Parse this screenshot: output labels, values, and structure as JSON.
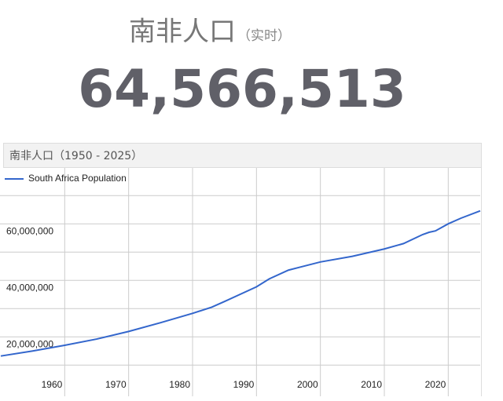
{
  "header": {
    "title": "南非人口",
    "subtitle": "（实时）",
    "counter": "64,566,513"
  },
  "chart_data": {
    "type": "line",
    "title": "南非人口（1950 - 2025）",
    "x": [
      1950,
      1955,
      1960,
      1965,
      1970,
      1975,
      1980,
      1983,
      1985,
      1990,
      1992,
      1995,
      2000,
      2005,
      2010,
      2013,
      2016,
      2017,
      2018,
      2020,
      2022,
      2025
    ],
    "series": [
      {
        "name": "South Africa Population",
        "color": "#3366cc",
        "values": [
          13200000,
          15000000,
          17000000,
          19200000,
          21900000,
          25000000,
          28300000,
          30500000,
          32500000,
          37700000,
          40500000,
          43600000,
          46500000,
          48500000,
          51100000,
          53000000,
          56200000,
          57000000,
          57500000,
          60000000,
          62000000,
          64600000
        ]
      }
    ],
    "xlim": [
      1950,
      2025
    ],
    "xticks": [
      1960,
      1970,
      1980,
      1990,
      2000,
      2010,
      2020
    ],
    "ylim": [
      7000000,
      72000000
    ],
    "yticks": [
      {
        "value": 20000000,
        "label": "20,000,000"
      },
      {
        "value": 40000000,
        "label": "40,000,000"
      },
      {
        "value": 60000000,
        "label": "60,000,000"
      }
    ],
    "minor_yticks": [
      10000000,
      30000000,
      50000000,
      70000000
    ],
    "grid": true
  }
}
